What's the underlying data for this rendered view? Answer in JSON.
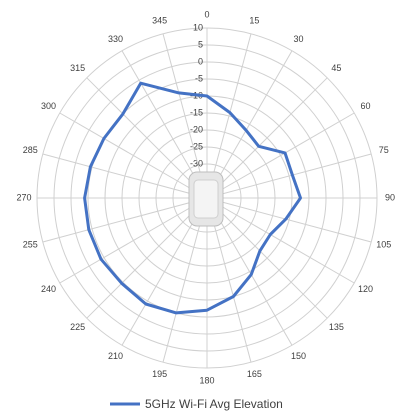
{
  "chart_data": {
    "type": "polar",
    "x": [
      0,
      15,
      30,
      45,
      60,
      75,
      90,
      105,
      120,
      135,
      150,
      165,
      180,
      195,
      210,
      225,
      240,
      255,
      270,
      285,
      300,
      315,
      330,
      345
    ],
    "xlim": [
      0,
      360
    ],
    "xticks": [
      0,
      15,
      30,
      45,
      60,
      75,
      90,
      105,
      120,
      135,
      150,
      165,
      180,
      195,
      210,
      225,
      240,
      255,
      270,
      285,
      300,
      315,
      330,
      345
    ],
    "ylim": [
      -40,
      10
    ],
    "yticks": [
      -30,
      -25,
      -20,
      -15,
      -10,
      -5,
      0,
      5,
      10
    ],
    "grid": true,
    "legend": "bottom",
    "series": [
      {
        "name": "5GHz Wi-Fi Avg Elevation",
        "color": "#4472c4",
        "values": [
          -10,
          -14,
          -17,
          -18.5,
          -13.5,
          -14,
          -12.5,
          -16,
          -18.5,
          -18,
          -14,
          -10,
          -7,
          -5,
          -4,
          -4.5,
          -4,
          -4,
          -4,
          -4.5,
          -5,
          -5,
          -1,
          -8
        ]
      }
    ]
  }
}
